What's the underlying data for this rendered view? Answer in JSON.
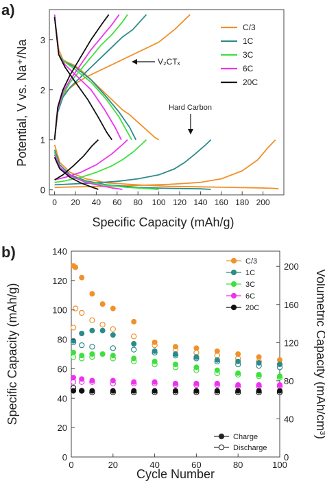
{
  "colors": {
    "c3": "#f0912a",
    "c1": "#2c8a8a",
    "c3c": "#3ee03e",
    "c6": "#ee33ee",
    "c20": "#111111"
  },
  "chart_data": [
    {
      "panel": "a)",
      "type": "line",
      "xlabel": "Specific Capacity (mAh/g)",
      "ylabel": "Potential, V vs. Na⁺/Na",
      "xlim": [
        -5,
        220
      ],
      "ylim": [
        -0.1,
        3.6
      ],
      "xticks": [
        0,
        20,
        40,
        60,
        80,
        100,
        120,
        140,
        160,
        180,
        200
      ],
      "yticks": [
        0,
        1,
        2,
        3
      ],
      "legend_position": "top-right",
      "annotations": [
        {
          "text": "V₂CTₓ",
          "arrow_to": [
            68,
            2.45
          ]
        },
        {
          "text": "Hard Carbon",
          "arrow_to": [
            134,
            1.05
          ]
        }
      ],
      "series": [
        {
          "name": "C/3",
          "color_key": "c3",
          "curves": [
            {
              "x": [
                0,
                4,
                8,
                12,
                18,
                25,
                35,
                45,
                55,
                65,
                72,
                80,
                88,
                96,
                100
              ],
              "y": [
                3.45,
                2.8,
                2.6,
                2.55,
                2.5,
                2.4,
                2.2,
                2.0,
                1.8,
                1.6,
                1.5,
                1.35,
                1.2,
                1.05,
                1.0
              ]
            },
            {
              "x": [
                0,
                2,
                5,
                10,
                20,
                30,
                40,
                55,
                70,
                85,
                100,
                115,
                130
              ],
              "y": [
                1.0,
                1.45,
                1.75,
                1.95,
                2.12,
                2.25,
                2.35,
                2.5,
                2.65,
                2.8,
                2.95,
                3.2,
                3.5
              ]
            },
            {
              "x": [
                0,
                5,
                15,
                30,
                50,
                80,
                110,
                140,
                170,
                195,
                210,
                215
              ],
              "y": [
                0.9,
                0.55,
                0.35,
                0.22,
                0.14,
                0.1,
                0.07,
                0.06,
                0.05,
                0.04,
                0.03,
                0.02
              ]
            },
            {
              "x": [
                0,
                20,
                50,
                80,
                110,
                140,
                160,
                180,
                195,
                205,
                212
              ],
              "y": [
                0.05,
                0.06,
                0.07,
                0.09,
                0.11,
                0.15,
                0.22,
                0.38,
                0.6,
                0.85,
                1.0
              ]
            }
          ]
        },
        {
          "name": "1C",
          "color_key": "c1",
          "curves": [
            {
              "x": [
                0,
                4,
                10,
                20,
                35,
                50,
                62,
                72,
                78
              ],
              "y": [
                3.45,
                2.7,
                2.55,
                2.45,
                2.2,
                1.85,
                1.55,
                1.25,
                1.0
              ]
            },
            {
              "x": [
                0,
                3,
                8,
                15,
                25,
                35,
                45,
                55,
                65,
                75,
                88
              ],
              "y": [
                1.0,
                1.55,
                1.85,
                2.05,
                2.25,
                2.45,
                2.65,
                2.85,
                3.05,
                3.2,
                3.5
              ]
            },
            {
              "x": [
                0,
                5,
                15,
                30,
                50,
                80,
                110,
                140,
                150
              ],
              "y": [
                0.8,
                0.5,
                0.3,
                0.18,
                0.1,
                0.05,
                0.03,
                0.02,
                0.01
              ]
            },
            {
              "x": [
                0,
                20,
                40,
                60,
                80,
                100,
                115,
                125,
                135,
                145,
                150
              ],
              "y": [
                0.1,
                0.12,
                0.14,
                0.17,
                0.22,
                0.3,
                0.42,
                0.55,
                0.72,
                0.9,
                1.0
              ]
            }
          ]
        },
        {
          "name": "3C",
          "color_key": "c3c",
          "curves": [
            {
              "x": [
                0,
                4,
                10,
                20,
                35,
                50,
                62,
                70,
                74
              ],
              "y": [
                3.5,
                2.7,
                2.55,
                2.4,
                2.15,
                1.8,
                1.45,
                1.15,
                1.0
              ]
            },
            {
              "x": [
                0,
                3,
                8,
                15,
                25,
                35,
                45,
                55,
                65,
                70
              ],
              "y": [
                1.0,
                1.6,
                1.9,
                2.15,
                2.4,
                2.65,
                2.9,
                3.1,
                3.35,
                3.5
              ]
            },
            {
              "x": [
                0,
                5,
                15,
                30,
                50,
                70,
                85,
                100
              ],
              "y": [
                0.75,
                0.45,
                0.28,
                0.16,
                0.09,
                0.05,
                0.03,
                0.01
              ]
            },
            {
              "x": [
                0,
                10,
                25,
                40,
                55,
                65,
                75,
                82,
                88
              ],
              "y": [
                0.15,
                0.18,
                0.25,
                0.35,
                0.48,
                0.6,
                0.75,
                0.88,
                1.0
              ]
            }
          ]
        },
        {
          "name": "6C",
          "color_key": "c6",
          "curves": [
            {
              "x": [
                0,
                4,
                10,
                20,
                35,
                48,
                58,
                64
              ],
              "y": [
                3.5,
                2.7,
                2.5,
                2.3,
                2.0,
                1.6,
                1.25,
                1.0
              ]
            },
            {
              "x": [
                0,
                3,
                8,
                15,
                25,
                35,
                45,
                55,
                62
              ],
              "y": [
                1.0,
                1.6,
                1.95,
                2.2,
                2.5,
                2.8,
                3.05,
                3.3,
                3.5
              ]
            },
            {
              "x": [
                0,
                5,
                15,
                30,
                45,
                55,
                65
              ],
              "y": [
                0.7,
                0.45,
                0.28,
                0.15,
                0.08,
                0.04,
                0.01
              ]
            },
            {
              "x": [
                0,
                10,
                25,
                40,
                55,
                65,
                70
              ],
              "y": [
                0.2,
                0.25,
                0.35,
                0.5,
                0.72,
                0.9,
                1.0
              ]
            }
          ]
        },
        {
          "name": "20C",
          "color_key": "c20",
          "curves": [
            {
              "x": [
                0,
                4,
                10,
                20,
                32,
                42,
                50,
                55
              ],
              "y": [
                3.45,
                2.7,
                2.45,
                2.15,
                1.8,
                1.45,
                1.15,
                1.0
              ]
            },
            {
              "x": [
                0,
                3,
                8,
                15,
                25,
                35,
                45,
                52
              ],
              "y": [
                1.0,
                1.65,
                2.0,
                2.3,
                2.65,
                3.0,
                3.3,
                3.5
              ]
            },
            {
              "x": [
                0,
                5,
                15,
                25,
                35,
                42
              ],
              "y": [
                0.65,
                0.42,
                0.25,
                0.14,
                0.06,
                0.01
              ]
            },
            {
              "x": [
                0,
                8,
                18,
                28,
                36,
                42
              ],
              "y": [
                0.2,
                0.3,
                0.48,
                0.68,
                0.88,
                1.0
              ]
            }
          ]
        }
      ]
    },
    {
      "panel": "b)",
      "type": "scatter",
      "xlabel": "Cycle Number",
      "ylabel": "Specific Capacity (mAh/g)",
      "y2label": "Volumetric Capacity (mAh/cm³)",
      "xlim": [
        0,
        100
      ],
      "ylim": [
        0,
        140
      ],
      "y2lim": [
        0,
        216
      ],
      "xticks": [
        0,
        20,
        40,
        60,
        80,
        100
      ],
      "yticks": [
        0,
        20,
        40,
        60,
        80,
        100,
        120,
        140
      ],
      "y2ticks": [
        0,
        40,
        80,
        120,
        160,
        200
      ],
      "legend_position": "top-right",
      "marker_legend": [
        {
          "label": "Charge",
          "filled": true
        },
        {
          "label": "Discharge",
          "filled": false
        }
      ],
      "series": [
        {
          "name": "C/3",
          "color_key": "c3",
          "charge_x": [
            1,
            2,
            5,
            10,
            15,
            20,
            30,
            40,
            50,
            60,
            70,
            80,
            90,
            100
          ],
          "charge_y": [
            130,
            129,
            122,
            111,
            104,
            101,
            92,
            78,
            75,
            74,
            72,
            70,
            68,
            66
          ],
          "discharge_x": [
            1,
            2,
            5,
            10,
            15,
            20,
            30,
            40,
            50,
            60,
            70,
            80,
            90,
            100
          ],
          "discharge_y": [
            88,
            101,
            98,
            93,
            90,
            87,
            82,
            76,
            73,
            71,
            69,
            67,
            65,
            63
          ]
        },
        {
          "name": "1C",
          "color_key": "c1",
          "charge_x": [
            1,
            5,
            10,
            15,
            20,
            30,
            40,
            50,
            60,
            70,
            80,
            90,
            100
          ],
          "charge_y": [
            79,
            84,
            86,
            86,
            83,
            77,
            72,
            70,
            68,
            66,
            65,
            64,
            63
          ],
          "discharge_x": [
            1,
            5,
            10,
            20,
            30,
            40,
            50,
            60,
            70,
            80,
            90,
            100
          ],
          "discharge_y": [
            78,
            76,
            75,
            74,
            73,
            71,
            69,
            67,
            65,
            63,
            62,
            61
          ]
        },
        {
          "name": "3C",
          "color_key": "c3c",
          "charge_x": [
            1,
            5,
            10,
            15,
            20,
            30,
            40,
            50,
            60,
            70,
            80,
            90,
            100
          ],
          "charge_y": [
            71,
            69,
            70,
            70,
            69,
            67,
            65,
            63,
            61,
            59,
            57,
            56,
            55
          ],
          "discharge_x": [
            1,
            5,
            10,
            20,
            30,
            40,
            50,
            60,
            70,
            80,
            90,
            100
          ],
          "discharge_y": [
            68,
            67,
            68,
            67,
            65,
            63,
            61,
            59,
            57,
            56,
            55,
            54
          ]
        },
        {
          "name": "6C",
          "color_key": "c6",
          "charge_x": [
            1,
            5,
            10,
            20,
            30,
            40,
            50,
            60,
            70,
            80,
            90,
            100
          ],
          "charge_y": [
            54,
            53,
            52,
            52,
            51,
            51,
            50,
            50,
            50,
            49,
            49,
            49
          ],
          "discharge_x": [
            1,
            5,
            10,
            20,
            30,
            40,
            50,
            60,
            70,
            80,
            90,
            100
          ],
          "discharge_y": [
            51,
            51,
            51,
            50,
            50,
            50,
            49,
            49,
            49,
            48,
            48,
            48
          ]
        },
        {
          "name": "20C",
          "color_key": "c20",
          "charge_x": [
            1,
            5,
            10,
            20,
            30,
            40,
            50,
            60,
            70,
            80,
            90,
            100
          ],
          "charge_y": [
            45,
            45,
            45,
            45,
            45,
            45,
            45,
            45,
            45,
            45,
            45,
            45
          ],
          "discharge_x": [
            1,
            5,
            10,
            20,
            30,
            40,
            50,
            60,
            70,
            80,
            90,
            100
          ],
          "discharge_y": [
            47,
            45,
            44,
            44,
            44,
            44,
            44,
            44,
            44,
            44,
            44,
            44
          ]
        }
      ]
    }
  ]
}
